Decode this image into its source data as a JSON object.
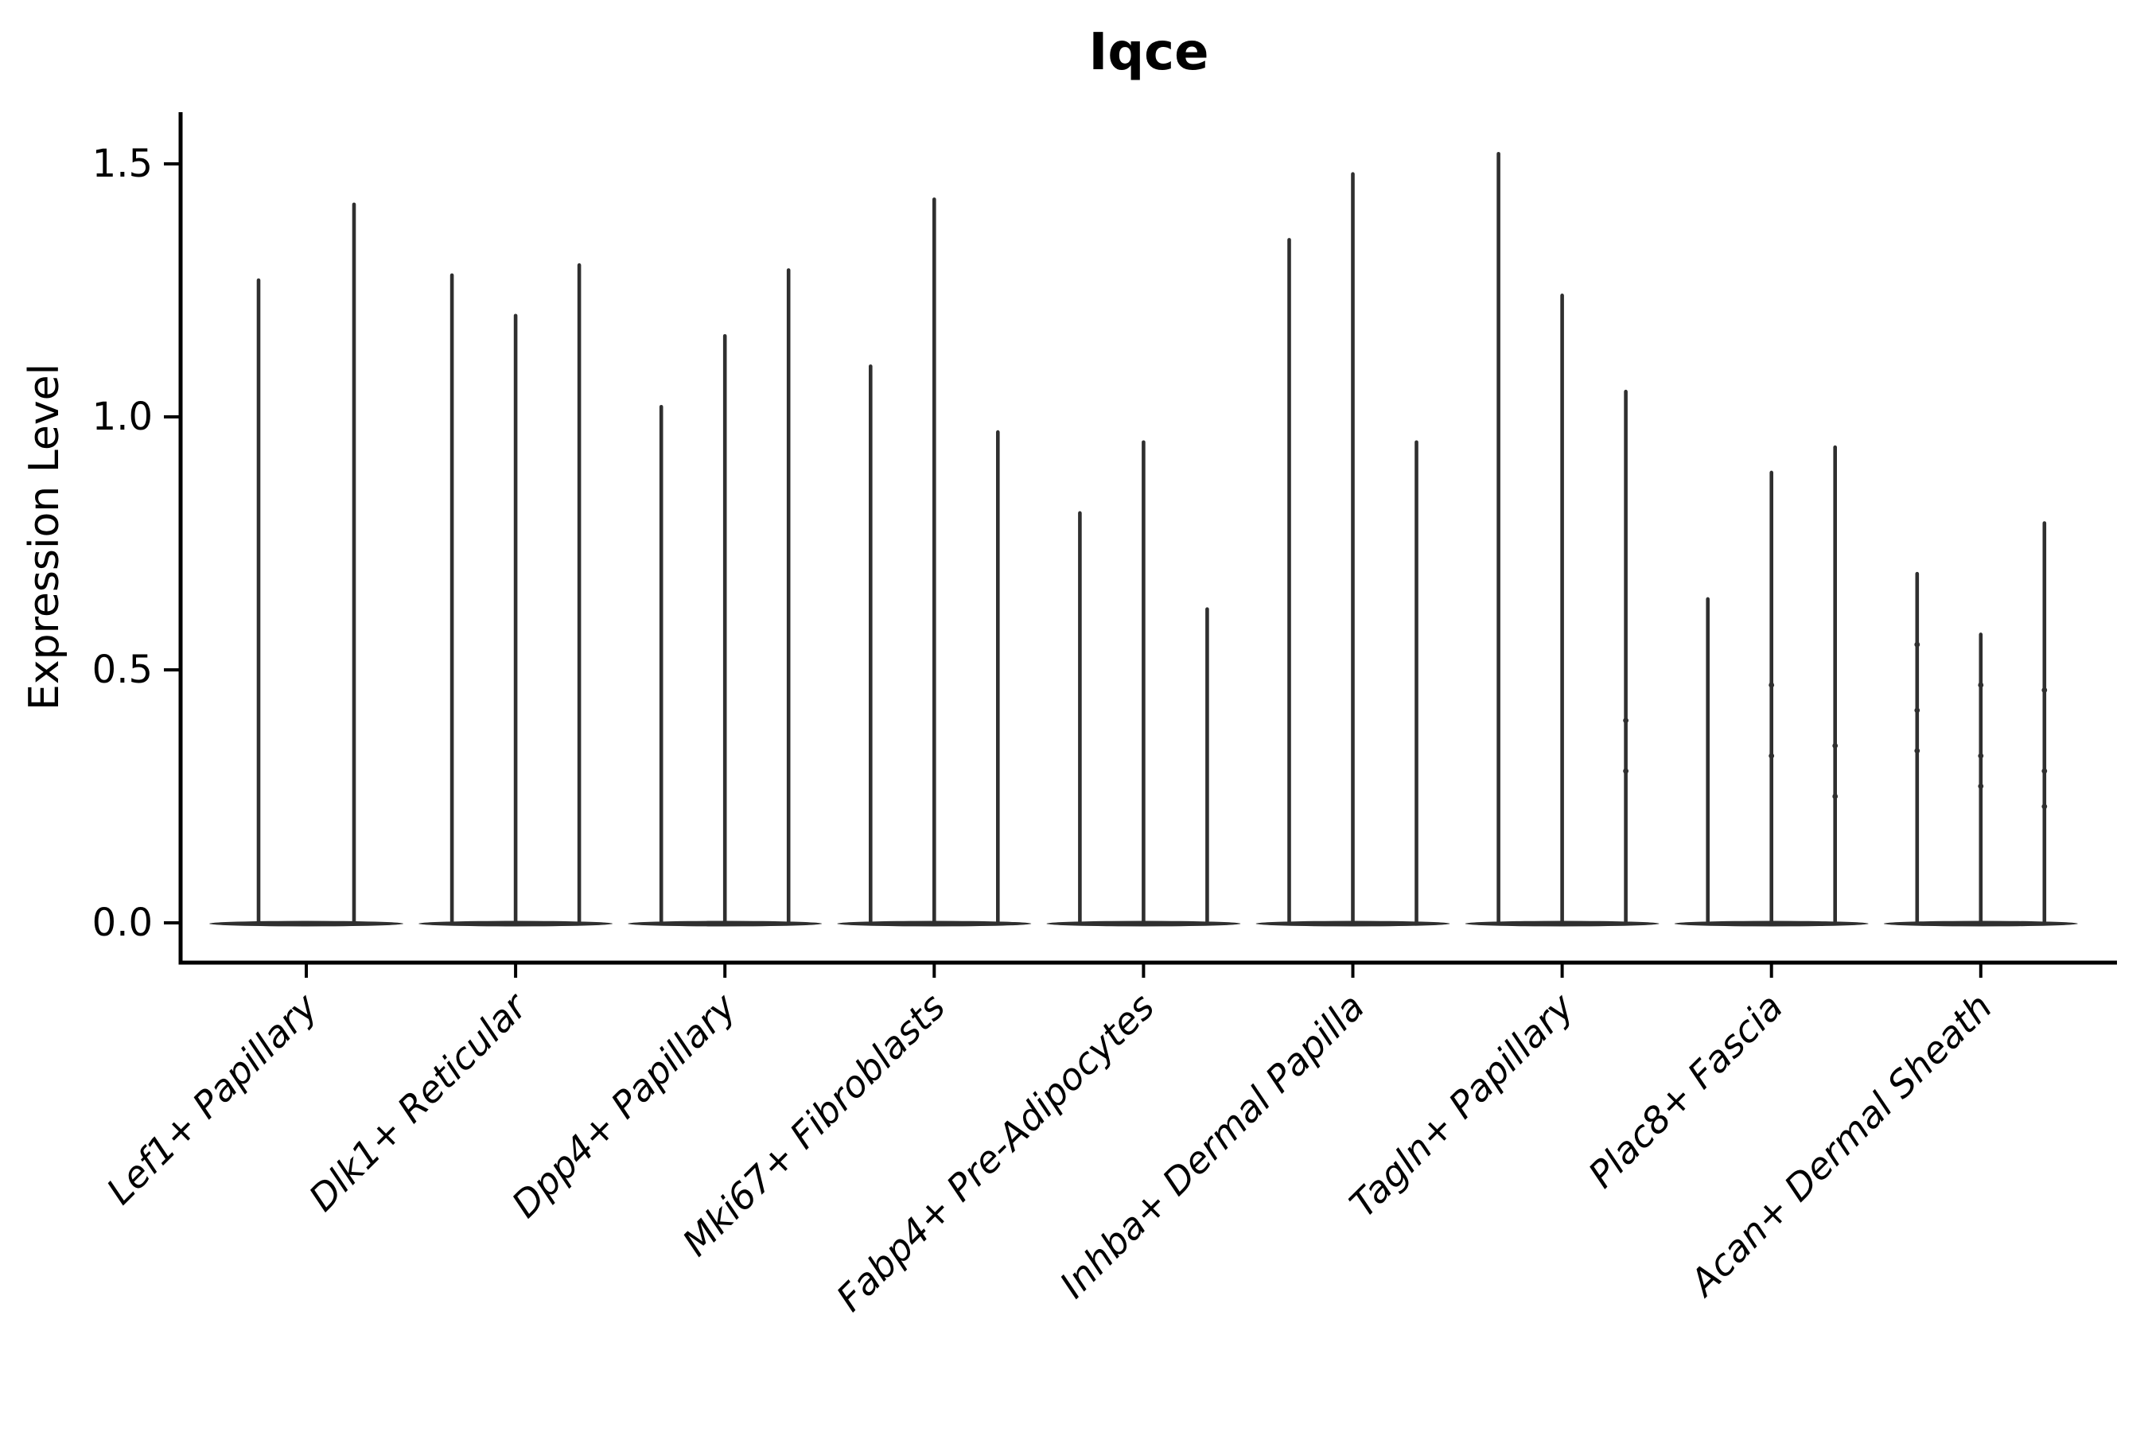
{
  "figure": {
    "background": "#ffffff",
    "legend": "none"
  },
  "chart_data": {
    "type": "violin",
    "title": "Iqce",
    "xlabel": "",
    "ylabel": "Expression Level",
    "ylim": [
      0,
      1.58
    ],
    "yticks": [
      0.0,
      0.5,
      1.0,
      1.5
    ],
    "ytick_labels": [
      "0.0",
      "0.5",
      "1.0",
      "1.5"
    ],
    "grid": false,
    "legend_position": "none",
    "x_tick_rotation_deg": 45,
    "categories": [
      "Lef1+ Papillary",
      "Dlk1+ Reticular",
      "Dpp4+ Papillary",
      "Mki67+ Fibroblasts",
      "Fabp4+ Pre-Adipocytes",
      "Inhba+ Dermal Papilla",
      "Tagln+ Papillary",
      "Plac8+ Fascia",
      "Acan+ Dermal Sheath"
    ],
    "series": [
      {
        "category": "Lef1+ Papillary",
        "violins": [
          {
            "peak": 1.27,
            "bumps": []
          },
          {
            "peak": 1.42,
            "bumps": []
          }
        ]
      },
      {
        "category": "Dlk1+ Reticular",
        "violins": [
          {
            "peak": 1.28,
            "bumps": []
          },
          {
            "peak": 1.2,
            "bumps": []
          },
          {
            "peak": 1.3,
            "bumps": []
          }
        ]
      },
      {
        "category": "Dpp4+ Papillary",
        "violins": [
          {
            "peak": 1.02,
            "bumps": []
          },
          {
            "peak": 1.16,
            "bumps": []
          },
          {
            "peak": 1.29,
            "bumps": []
          }
        ]
      },
      {
        "category": "Mki67+ Fibroblasts",
        "violins": [
          {
            "peak": 1.1,
            "bumps": []
          },
          {
            "peak": 1.43,
            "bumps": []
          },
          {
            "peak": 0.97,
            "bumps": []
          }
        ]
      },
      {
        "category": "Fabp4+ Pre-Adipocytes",
        "violins": [
          {
            "peak": 0.81,
            "bumps": []
          },
          {
            "peak": 0.95,
            "bumps": []
          },
          {
            "peak": 0.62,
            "bumps": []
          }
        ]
      },
      {
        "category": "Inhba+ Dermal Papilla",
        "violins": [
          {
            "peak": 1.35,
            "bumps": []
          },
          {
            "peak": 1.48,
            "bumps": []
          },
          {
            "peak": 0.95,
            "bumps": []
          }
        ]
      },
      {
        "category": "Tagln+ Papillary",
        "violins": [
          {
            "peak": 1.52,
            "bumps": []
          },
          {
            "peak": 1.24,
            "bumps": []
          },
          {
            "peak": 1.05,
            "bumps": [
              0.4,
              0.3
            ]
          }
        ]
      },
      {
        "category": "Plac8+ Fascia",
        "violins": [
          {
            "peak": 0.64,
            "bumps": []
          },
          {
            "peak": 0.89,
            "bumps": [
              0.47,
              0.33
            ]
          },
          {
            "peak": 0.94,
            "bumps": [
              0.35,
              0.25
            ]
          }
        ]
      },
      {
        "category": "Acan+ Dermal Sheath",
        "violins": [
          {
            "peak": 0.69,
            "bumps": [
              0.55,
              0.42,
              0.34
            ]
          },
          {
            "peak": 0.57,
            "bumps": [
              0.47,
              0.33,
              0.27
            ]
          },
          {
            "peak": 0.79,
            "bumps": [
              0.46,
              0.3,
              0.23
            ]
          }
        ]
      }
    ],
    "violin_style": "flat density at 0 with thin spike to peak"
  },
  "colors": {
    "ink": "#000000",
    "violin": "#2f2f2f",
    "background": "#ffffff"
  }
}
